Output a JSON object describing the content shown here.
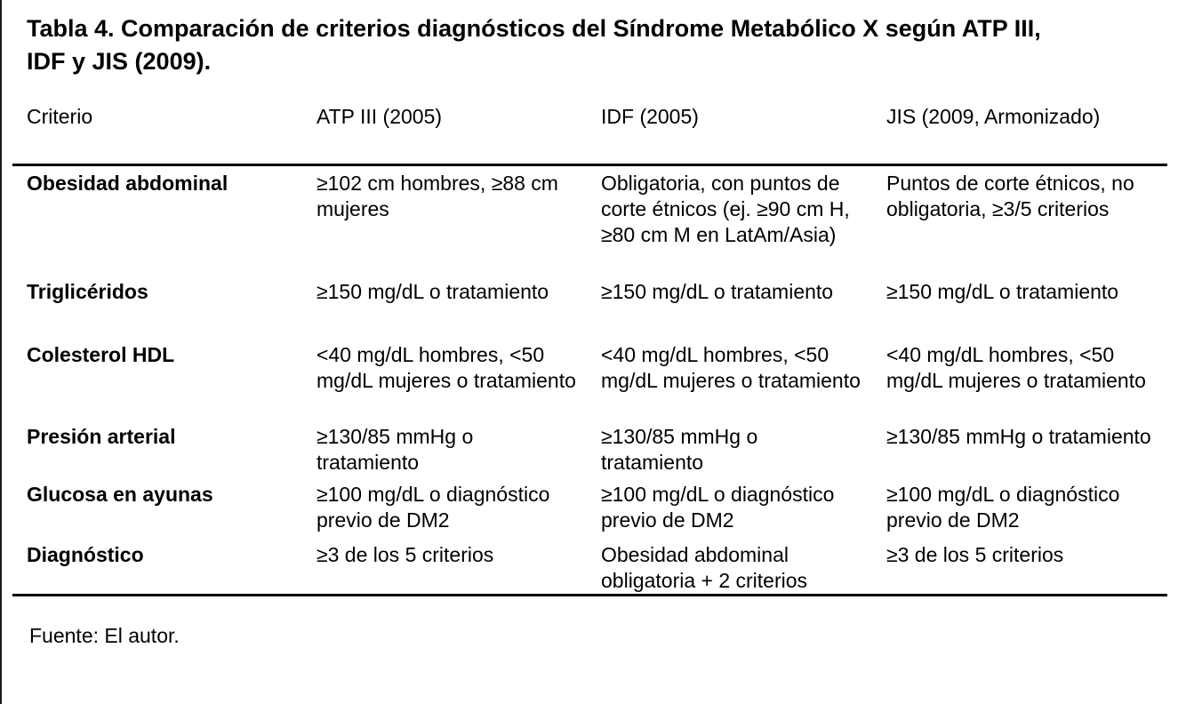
{
  "title": {
    "line1": "Tabla 4. Comparación de criterios diagnósticos del Síndrome Metabólico X según ATP III,",
    "line2": "IDF y JIS (2009)."
  },
  "table": {
    "headers": [
      "Criterio",
      "ATP III (2005)",
      "IDF (2005)",
      "JIS (2009, Armonizado)"
    ],
    "rows": [
      {
        "label": "Obesidad abdominal",
        "atp": "≥102 cm hombres, ≥88 cm mujeres",
        "idf": "Obligatoria, con puntos de corte étnicos (ej. ≥90 cm H, ≥80 cm M en LatAm/Asia)",
        "jis": "Puntos de corte étnicos, no obligatoria, ≥3/5 criterios"
      },
      {
        "label": "Triglicéridos",
        "atp": "≥150 mg/dL o tratamiento",
        "idf": "≥150 mg/dL o tratamiento",
        "jis": "≥150 mg/dL o tratamiento"
      },
      {
        "label": "Colesterol HDL",
        "atp": "<40 mg/dL hombres, <50 mg/dL mujeres o tratamiento",
        "idf": "<40 mg/dL hombres, <50 mg/dL mujeres o tratamiento",
        "jis": "<40 mg/dL hombres, <50 mg/dL mujeres o tratamiento"
      },
      {
        "label": "Presión arterial",
        "atp": "≥130/85 mmHg o tratamiento",
        "idf": "≥130/85 mmHg o tratamiento",
        "jis": "≥130/85 mmHg o tratamiento"
      },
      {
        "label": "Glucosa en ayunas",
        "atp": "≥100 mg/dL o diagnóstico previo de DM2",
        "idf": "≥100 mg/dL o diagnóstico previo de DM2",
        "jis": "≥100 mg/dL o diagnóstico previo de DM2"
      },
      {
        "label": "Diagnóstico",
        "atp": "≥3 de los 5 criterios",
        "idf": "Obesidad abdominal obligatoria + 2 criterios",
        "jis": "≥3 de los 5 criterios"
      }
    ]
  },
  "footer": {
    "source": "Fuente: El autor."
  }
}
